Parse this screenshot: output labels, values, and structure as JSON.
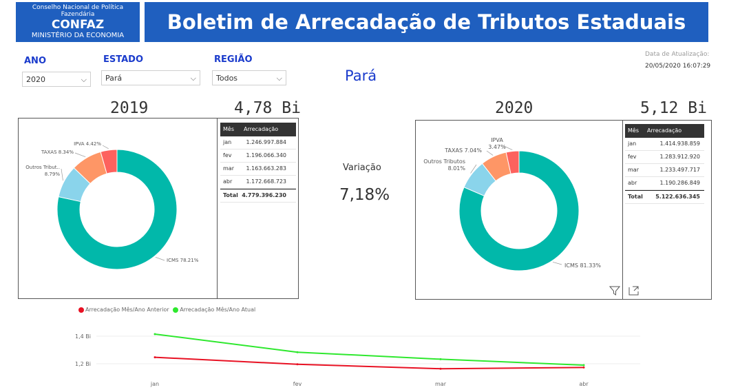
{
  "header": {
    "org_line1": "Conselho Nacional de Política Fazendária",
    "org_line2": "CONFAZ",
    "org_line3": "MINISTÉRIO DA ECONOMIA",
    "title": "Boletim de Arrecadação de Tributos Estaduais"
  },
  "filters": {
    "ano_label": "ANO",
    "ano_value": "2020",
    "estado_label": "ESTADO",
    "estado_value": "Pará",
    "regiao_label": "REGIÃO",
    "regiao_value": "Todos"
  },
  "update": {
    "label": "Data de Atualização:",
    "value": "20/05/2020 16:07:29"
  },
  "state_title": "Pará",
  "left": {
    "year": "2019",
    "total": "4,78 Bi"
  },
  "right": {
    "year": "2020",
    "total": "5,12 Bi"
  },
  "variation": {
    "label": "Variação",
    "value": "7,18%"
  },
  "table_headers": {
    "month": "Mês",
    "value": "Arrecadação"
  },
  "table_2019": {
    "rows": [
      {
        "m": "jan",
        "v": "1.246.997.884"
      },
      {
        "m": "fev",
        "v": "1.196.066.340"
      },
      {
        "m": "mar",
        "v": "1.163.663.283"
      },
      {
        "m": "abr",
        "v": "1.172.668.723"
      }
    ],
    "total_label": "Total",
    "total_value": "4.779.396.230"
  },
  "table_2020": {
    "rows": [
      {
        "m": "jan",
        "v": "1.414.938.859"
      },
      {
        "m": "fev",
        "v": "1.283.912.920"
      },
      {
        "m": "mar",
        "v": "1.233.497.717"
      },
      {
        "m": "abr",
        "v": "1.190.286.849"
      }
    ],
    "total_label": "Total",
    "total_value": "5.122.636.345"
  },
  "colors": {
    "icms": "#01b8aa",
    "outros": "#8ad4eb",
    "taxas": "#fe9666",
    "ipva": "#fd625e",
    "prev": "#e81123",
    "curr": "#2ee82e",
    "brand": "#1f5fbf"
  },
  "chart_data": [
    {
      "type": "pie",
      "donut": true,
      "categories": [
        "ICMS",
        "Outros Tribut..",
        "TAXAS",
        "IPVA"
      ],
      "values": [
        78.21,
        8.79,
        8.34,
        4.42
      ],
      "labels": [
        "ICMS 78.21%",
        "Outros Tribut..",
        "8.79%",
        "TAXAS 8.34%",
        "IPVA 4.42%"
      ]
    },
    {
      "type": "pie",
      "donut": true,
      "categories": [
        "ICMS",
        "Outros Tributos",
        "TAXAS",
        "IPVA"
      ],
      "values": [
        81.33,
        8.01,
        7.04,
        3.47
      ],
      "labels": [
        "ICMS 81.33%",
        "Outros Tributos",
        "8.01%",
        "TAXAS 7.04%",
        "IPVA",
        "3.47%"
      ]
    },
    {
      "type": "line",
      "categories": [
        "jan",
        "fev",
        "mar",
        "abr"
      ],
      "series": [
        {
          "name": "Arrecadação Mês/Ano Anterior",
          "values": [
            1.247,
            1.196,
            1.164,
            1.173
          ]
        },
        {
          "name": "Arrecadação Mês/Ano Atual",
          "values": [
            1.415,
            1.284,
            1.233,
            1.19
          ]
        }
      ],
      "ytick_labels": [
        "1,4 Bi",
        "1,2 Bi"
      ],
      "yticks": [
        1.4,
        1.2
      ],
      "ylim": [
        1.1,
        1.5
      ],
      "grid": true,
      "legend": "top-left"
    }
  ]
}
